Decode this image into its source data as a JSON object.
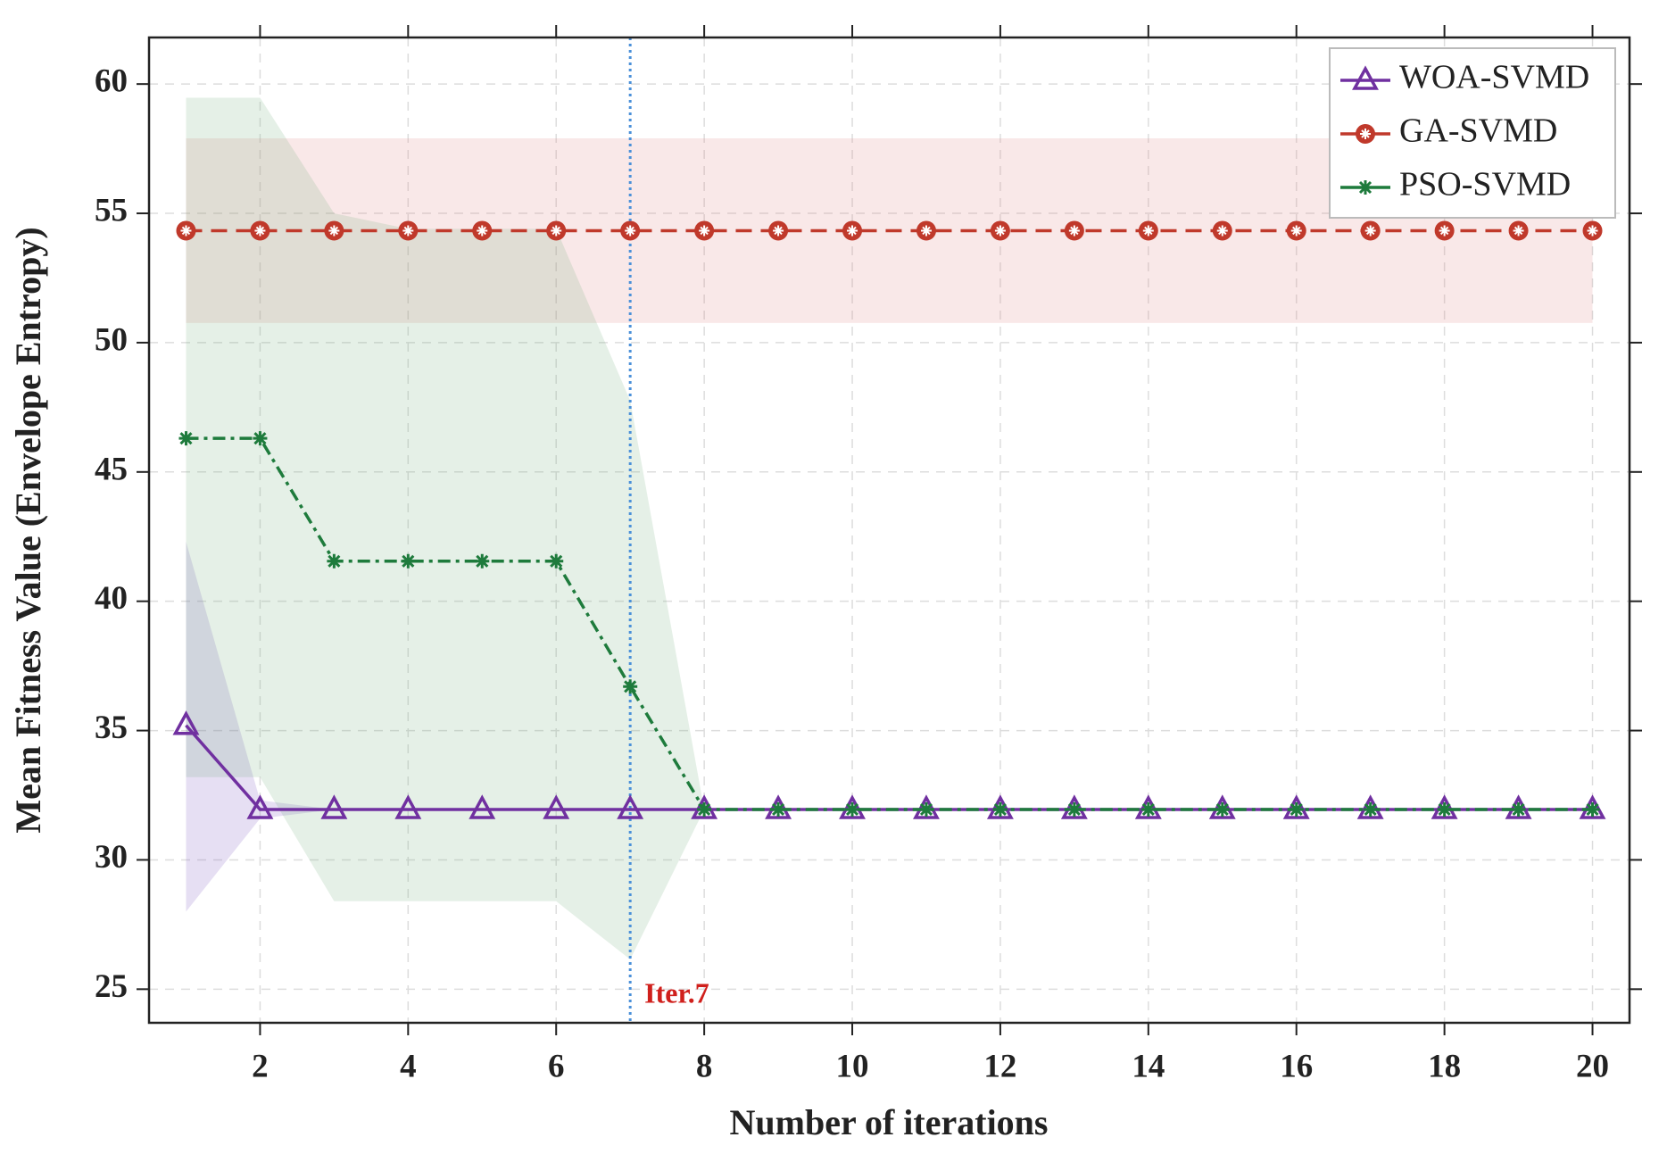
{
  "chart_data": {
    "type": "line",
    "xlabel": "Number of iterations",
    "ylabel": "Mean Fitness Value (Envelope Entropy)",
    "x": [
      1,
      2,
      3,
      4,
      5,
      6,
      7,
      8,
      9,
      10,
      11,
      12,
      13,
      14,
      15,
      16,
      17,
      18,
      19,
      20
    ],
    "xlim": [
      0.5,
      20.5
    ],
    "ylim": [
      23.7,
      61.8
    ],
    "xticks": [
      2,
      4,
      6,
      8,
      10,
      12,
      14,
      16,
      18,
      20
    ],
    "yticks": [
      25,
      30,
      35,
      40,
      45,
      50,
      55,
      60
    ],
    "grid": true,
    "legend": "upper right",
    "series": [
      {
        "name": "WOA-SVMD",
        "color": "#7030a0",
        "marker": "triangle",
        "linestyle": "solid",
        "band_color": "rgba(140,110,200,0.22)",
        "values": [
          35.2,
          31.95,
          31.95,
          31.95,
          31.95,
          31.95,
          31.95,
          31.95,
          31.95,
          31.95,
          31.95,
          31.95,
          31.95,
          31.95,
          31.95,
          31.95,
          31.95,
          31.95,
          31.95,
          31.95
        ],
        "upper": [
          42.3,
          32.3,
          31.95,
          31.95,
          31.95,
          31.95,
          31.95,
          31.95,
          31.95,
          31.95,
          31.95,
          31.95,
          31.95,
          31.95,
          31.95,
          31.95,
          31.95,
          31.95,
          31.95,
          31.95
        ],
        "lower": [
          28.0,
          31.6,
          31.95,
          31.95,
          31.95,
          31.95,
          31.95,
          31.95,
          31.95,
          31.95,
          31.95,
          31.95,
          31.95,
          31.95,
          31.95,
          31.95,
          31.95,
          31.95,
          31.95,
          31.95
        ]
      },
      {
        "name": "GA-SVMD",
        "color": "#c0392b",
        "marker": "circle",
        "linestyle": "dashed",
        "band_color": "rgba(220,130,130,0.18)",
        "values": [
          54.33,
          54.33,
          54.33,
          54.33,
          54.33,
          54.33,
          54.33,
          54.33,
          54.33,
          54.33,
          54.33,
          54.33,
          54.33,
          54.33,
          54.33,
          54.33,
          54.33,
          54.33,
          54.33,
          54.33
        ],
        "upper": [
          57.9,
          57.9,
          57.9,
          57.9,
          57.9,
          57.9,
          57.9,
          57.9,
          57.9,
          57.9,
          57.9,
          57.9,
          57.9,
          57.9,
          57.9,
          57.9,
          57.9,
          57.9,
          57.9,
          57.9
        ],
        "lower": [
          50.76,
          50.76,
          50.76,
          50.76,
          50.76,
          50.76,
          50.76,
          50.76,
          50.76,
          50.76,
          50.76,
          50.76,
          50.76,
          50.76,
          50.76,
          50.76,
          50.76,
          50.76,
          50.76,
          50.76
        ]
      },
      {
        "name": "PSO-SVMD",
        "color": "#1e7b3c",
        "marker": "star",
        "linestyle": "dashdot",
        "band_color": "rgba(110,170,120,0.18)",
        "values": [
          46.3,
          46.3,
          41.55,
          41.55,
          41.55,
          41.55,
          36.7,
          31.95,
          31.95,
          31.95,
          31.95,
          31.95,
          31.95,
          31.95,
          31.95,
          31.95,
          31.95,
          31.95,
          31.95,
          31.95
        ],
        "upper": [
          59.47,
          59.47,
          55.0,
          54.4,
          54.4,
          54.4,
          47.76,
          31.95,
          31.95,
          31.95,
          31.95,
          31.95,
          31.95,
          31.95,
          31.95,
          31.95,
          31.95,
          31.95,
          31.95,
          31.95
        ],
        "lower": [
          33.2,
          33.2,
          28.4,
          28.4,
          28.4,
          28.4,
          26.15,
          31.95,
          31.95,
          31.95,
          31.95,
          31.95,
          31.95,
          31.95,
          31.95,
          31.95,
          31.95,
          31.95,
          31.95,
          31.95
        ]
      }
    ],
    "vline": {
      "x": 7,
      "color": "#4a90d9",
      "label": "Iter.7",
      "label_color": "#d0201c"
    }
  }
}
